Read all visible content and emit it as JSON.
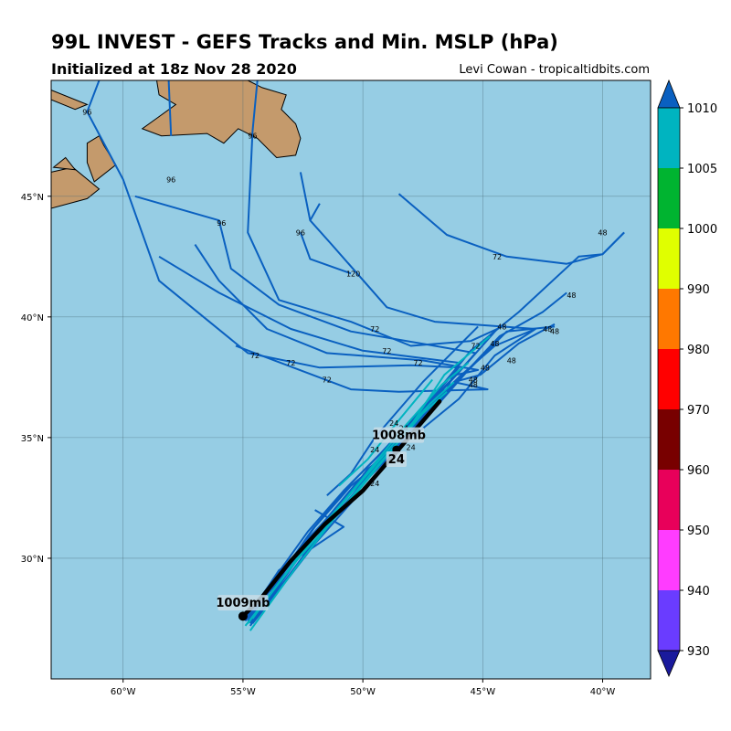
{
  "title": "99L INVEST - GEFS Tracks and Min. MSLP (hPa)",
  "subtitle": "Initialized at 18z Nov 28 2020",
  "credit": "Levi Cowan - tropicaltidbits.com",
  "map": {
    "lon_range": [
      -63,
      -38
    ],
    "lat_range": [
      25,
      49.8
    ],
    "ocean_color": "#96cde4",
    "land_color": "#c49a6c",
    "lon_ticks": [
      {
        "lon": -60,
        "label": "60°W"
      },
      {
        "lon": -55,
        "label": "55°W"
      },
      {
        "lon": -50,
        "label": "50°W"
      },
      {
        "lon": -45,
        "label": "45°W"
      },
      {
        "lon": -40,
        "label": "40°W"
      }
    ],
    "lat_ticks": [
      {
        "lat": 45,
        "label": "45°N"
      },
      {
        "lat": 40,
        "label": "40°N"
      },
      {
        "lat": 35,
        "label": "35°N"
      },
      {
        "lat": 30,
        "label": "30°N"
      }
    ]
  },
  "colorbar": {
    "levels": [
      "1010",
      "1005",
      "1000",
      "990",
      "980",
      "970",
      "960",
      "950",
      "940",
      "930"
    ],
    "colors": [
      "#0a60c0",
      "#00b4c0",
      "#00b430",
      "#e0ff00",
      "#ff7800",
      "#ff0000",
      "#780000",
      "#e8005a",
      "#ff3cff",
      "#6a3cff",
      "#1a1a9c"
    ]
  },
  "tracks": [
    [
      [
        -54.8,
        27.4
      ],
      [
        -53.5,
        29.2
      ],
      [
        -52,
        31.3
      ],
      [
        -50.5,
        33
      ],
      [
        -49,
        34.2
      ],
      [
        -47.5,
        35.8
      ],
      [
        -46,
        37.4
      ],
      [
        -44.3,
        39.2
      ],
      [
        -42.5,
        40.2
      ],
      [
        -41.5,
        41
      ]
    ],
    [
      [
        -54.7,
        27.3
      ],
      [
        -53.3,
        29
      ],
      [
        -51.8,
        31
      ],
      [
        -50.2,
        32.9
      ],
      [
        -48.8,
        34.3
      ],
      [
        -47.2,
        36
      ],
      [
        -45.6,
        37.8
      ],
      [
        -44,
        39.4
      ],
      [
        -42,
        39.6
      ]
    ],
    [
      [
        -54.9,
        27.5
      ],
      [
        -53.2,
        29.4
      ],
      [
        -51.6,
        31.5
      ],
      [
        -50,
        33.4
      ],
      [
        -48.5,
        35
      ],
      [
        -47,
        36.8
      ],
      [
        -45.5,
        38.6
      ],
      [
        -43.5,
        40.2
      ],
      [
        -41,
        42.5
      ],
      [
        -40,
        42.6
      ],
      [
        -39.1,
        43.5
      ]
    ],
    [
      [
        -54.6,
        27.3
      ],
      [
        -53.4,
        28.8
      ],
      [
        -52,
        30.6
      ],
      [
        -50.4,
        32.4
      ],
      [
        -48.9,
        34
      ],
      [
        -47.6,
        35.6
      ],
      [
        -46.2,
        37.3
      ],
      [
        -45.1,
        37.6
      ],
      [
        -43.5,
        38.9
      ],
      [
        -42,
        39.7
      ]
    ],
    [
      [
        -54.8,
        27.5
      ],
      [
        -53.6,
        29
      ],
      [
        -52.2,
        30.9
      ],
      [
        -50.6,
        32.6
      ],
      [
        -49.2,
        34
      ],
      [
        -47.8,
        35.3
      ],
      [
        -46.5,
        37
      ],
      [
        -46,
        38.1
      ],
      [
        -50,
        38.6
      ],
      [
        -53,
        39.5
      ],
      [
        -56,
        41
      ],
      [
        -58.5,
        42.5
      ]
    ],
    [
      [
        -54.7,
        27.4
      ],
      [
        -53.4,
        29.1
      ],
      [
        -51.9,
        31.1
      ],
      [
        -50.3,
        33
      ],
      [
        -48.9,
        34.5
      ],
      [
        -47.5,
        36.2
      ],
      [
        -46.1,
        37.6
      ],
      [
        -45.2,
        37.8
      ],
      [
        -47.5,
        38.2
      ],
      [
        -51.5,
        38.5
      ],
      [
        -54,
        39.5
      ],
      [
        -56,
        41.5
      ],
      [
        -57,
        43
      ]
    ],
    [
      [
        -54.8,
        27.6
      ],
      [
        -53.5,
        29.2
      ],
      [
        -52.1,
        31.2
      ],
      [
        -50.5,
        33.1
      ],
      [
        -49.1,
        34.5
      ],
      [
        -47.8,
        35.9
      ],
      [
        -46.2,
        37.5
      ],
      [
        -45.3,
        38.5
      ],
      [
        -47,
        38.8
      ],
      [
        -50.5,
        39.4
      ],
      [
        -53.5,
        40.5
      ],
      [
        -55.5,
        42
      ],
      [
        -56,
        44
      ],
      [
        -59.5,
        45
      ]
    ],
    [
      [
        -54.6,
        27.5
      ],
      [
        -53.3,
        29.2
      ],
      [
        -51.8,
        31.3
      ],
      [
        -50.2,
        33.2
      ],
      [
        -48.8,
        34.7
      ],
      [
        -47.4,
        36.2
      ],
      [
        -46,
        37.7
      ],
      [
        -44.4,
        39.5
      ],
      [
        -45.5,
        39
      ],
      [
        -48,
        38.8
      ],
      [
        -50.5,
        39.8
      ],
      [
        -53.5,
        40.7
      ],
      [
        -54.8,
        43.5
      ],
      [
        -54.6,
        47.7
      ]
    ],
    [
      [
        -54.9,
        27.5
      ],
      [
        -53.6,
        29.3
      ],
      [
        -52.3,
        31.1
      ],
      [
        -50.8,
        32.8
      ],
      [
        -49.4,
        34.2
      ],
      [
        -48,
        35.7
      ],
      [
        -46.8,
        37
      ],
      [
        -46,
        37.9
      ],
      [
        -48,
        38
      ],
      [
        -51.8,
        37.9
      ],
      [
        -54.8,
        38.5
      ],
      [
        -58.5,
        41.5
      ],
      [
        -60,
        45.7
      ],
      [
        -61.5,
        48.5
      ],
      [
        -61,
        49.8
      ]
    ],
    [
      [
        -54.7,
        27.2
      ],
      [
        -53.4,
        29
      ],
      [
        -52,
        31
      ],
      [
        -50.5,
        32.8
      ],
      [
        -49,
        34.3
      ],
      [
        -47.6,
        35.8
      ],
      [
        -46.2,
        37.3
      ],
      [
        -44.8,
        37
      ],
      [
        -48.5,
        36.9
      ],
      [
        -50.5,
        37
      ],
      [
        -55.3,
        38.8
      ]
    ],
    [
      [
        -54.8,
        27.4
      ],
      [
        -53.5,
        29.2
      ],
      [
        -52,
        31
      ],
      [
        -50.4,
        32.9
      ],
      [
        -49,
        34.4
      ],
      [
        -47.5,
        36
      ],
      [
        -46,
        37.5
      ],
      [
        -44.5,
        38.8
      ],
      [
        -42.8,
        39.5
      ],
      [
        -47,
        39.8
      ],
      [
        -49,
        40.4
      ],
      [
        -51.3,
        43
      ],
      [
        -52.2,
        44
      ],
      [
        -52.6,
        46
      ]
    ],
    [
      [
        -52.5,
        30
      ],
      [
        -49.8,
        33.7
      ],
      [
        -47.6,
        35.3
      ],
      [
        -46,
        36.6
      ],
      [
        -44.5,
        38.4
      ],
      [
        -42.8,
        39.5
      ]
    ],
    [
      [
        -52,
        32
      ],
      [
        -50.8,
        31.3
      ],
      [
        -53.5,
        29.5
      ],
      [
        -54.9,
        27.4
      ]
    ],
    [
      [
        -45.2,
        39.6
      ],
      [
        -47.5,
        37.3
      ],
      [
        -49.5,
        35
      ],
      [
        -50.5,
        33.5
      ],
      [
        -51.5,
        32.6
      ]
    ],
    [
      [
        -52.6,
        43.5
      ],
      [
        -52.2,
        42.4
      ],
      [
        -50.5,
        41.8
      ]
    ],
    [
      [
        -48.5,
        45.1
      ],
      [
        -46.5,
        43.4
      ],
      [
        -44,
        42.5
      ],
      [
        -41.5,
        42.2
      ],
      [
        -40,
        42.6
      ],
      [
        -39.1,
        43.5
      ]
    ],
    [
      [
        -54.6,
        47.7
      ],
      [
        -54.4,
        49.8
      ]
    ],
    [
      [
        -58,
        47.5
      ],
      [
        -58.1,
        49.8
      ]
    ],
    [
      [
        -52.2,
        44
      ],
      [
        -51.8,
        44.7
      ]
    ]
  ],
  "mean_track": [
    [
      -55,
      27.6
    ],
    [
      -54.2,
      28.4
    ],
    [
      -53,
      29.9
    ],
    [
      -51.6,
      31.4
    ],
    [
      -50,
      32.8
    ],
    [
      -48.6,
      34.4
    ],
    [
      -48,
      35.1
    ],
    [
      -47.4,
      35.8
    ],
    [
      -46.8,
      36.5
    ]
  ],
  "cyan_tracks": [
    [
      [
        -54.8,
        27.3
      ],
      [
        -52.5,
        30.3
      ],
      [
        -50.4,
        32.8
      ],
      [
        -48.5,
        35
      ],
      [
        -47.2,
        36.4
      ],
      [
        -46.2,
        37.3
      ]
    ],
    [
      [
        -54.6,
        27.5
      ],
      [
        -52.3,
        30.6
      ],
      [
        -50.1,
        33.2
      ],
      [
        -48.4,
        35.3
      ],
      [
        -46.7,
        37.2
      ],
      [
        -45.6,
        38.1
      ]
    ],
    [
      [
        -54.9,
        27.2
      ],
      [
        -52.6,
        30.1
      ],
      [
        -50.6,
        32.3
      ],
      [
        -48.7,
        34.6
      ],
      [
        -47.5,
        36
      ],
      [
        -46.5,
        36.9
      ]
    ],
    [
      [
        -54.7,
        27
      ],
      [
        -52.8,
        29.6
      ],
      [
        -51,
        31.9
      ],
      [
        -49.5,
        33.7
      ],
      [
        -48.2,
        35.2
      ],
      [
        -46.6,
        37.6
      ],
      [
        -44.7,
        39.2
      ]
    ],
    [
      [
        -51,
        33
      ],
      [
        -49.8,
        34.1
      ],
      [
        -48.6,
        35.6
      ],
      [
        -47.1,
        37.4
      ]
    ]
  ],
  "hour_labels": [
    {
      "lon": -61.5,
      "lat": 48.5,
      "text": "96"
    },
    {
      "lon": -58,
      "lat": 45.7,
      "text": "96"
    },
    {
      "lon": -55.9,
      "lat": 43.9,
      "text": "96"
    },
    {
      "lon": -52.6,
      "lat": 43.5,
      "text": "96"
    },
    {
      "lon": -54.6,
      "lat": 47.5,
      "text": "96"
    },
    {
      "lon": -50.4,
      "lat": 41.8,
      "text": "120"
    },
    {
      "lon": -44.4,
      "lat": 42.5,
      "text": "72"
    },
    {
      "lon": -40,
      "lat": 43.5,
      "text": "48"
    },
    {
      "lon": -41.3,
      "lat": 40.9,
      "text": "48"
    },
    {
      "lon": -49.5,
      "lat": 39.5,
      "text": "72"
    },
    {
      "lon": -49,
      "lat": 38.6,
      "text": "72"
    },
    {
      "lon": -47.7,
      "lat": 38.1,
      "text": "72"
    },
    {
      "lon": -45.3,
      "lat": 38.8,
      "text": "72"
    },
    {
      "lon": -44.5,
      "lat": 38.9,
      "text": "48"
    },
    {
      "lon": -44.2,
      "lat": 39.6,
      "text": "48"
    },
    {
      "lon": -43.8,
      "lat": 38.2,
      "text": "48"
    },
    {
      "lon": -44.9,
      "lat": 37.9,
      "text": "48"
    },
    {
      "lon": -45.4,
      "lat": 37.4,
      "text": "48"
    },
    {
      "lon": -45.4,
      "lat": 37.2,
      "text": "48"
    },
    {
      "lon": -42.3,
      "lat": 39.5,
      "text": "48"
    },
    {
      "lon": -42,
      "lat": 39.4,
      "text": "48"
    },
    {
      "lon": -54.5,
      "lat": 38.4,
      "text": "72"
    },
    {
      "lon": -53,
      "lat": 38.1,
      "text": "72"
    },
    {
      "lon": -51.5,
      "lat": 37.4,
      "text": "72"
    },
    {
      "lon": -48.7,
      "lat": 35.6,
      "text": "24"
    },
    {
      "lon": -48.3,
      "lat": 35.4,
      "text": "24"
    },
    {
      "lon": -49.5,
      "lat": 34.5,
      "text": "24"
    },
    {
      "lon": -48,
      "lat": 34.6,
      "text": "24"
    },
    {
      "lon": -49.5,
      "lat": 33.1,
      "text": "24"
    }
  ],
  "annotations": [
    {
      "lon": -48.5,
      "lat": 35.05,
      "text": "1008mb"
    },
    {
      "lon": -48.6,
      "lat": 34.05,
      "text": "24"
    },
    {
      "lon": -55,
      "lat": 28.1,
      "text": "1009mb"
    }
  ],
  "land": [
    [
      [
        -63,
        49
      ],
      [
        -62,
        48.6
      ],
      [
        -61.5,
        48.8
      ],
      [
        -63,
        49.4
      ]
    ],
    [
      [
        -58.6,
        49.8
      ],
      [
        -58.5,
        49.2
      ],
      [
        -57.8,
        48.8
      ],
      [
        -58.5,
        48.3
      ],
      [
        -59.2,
        47.8
      ],
      [
        -58.4,
        47.5
      ],
      [
        -56.5,
        47.6
      ],
      [
        -55.8,
        47.2
      ],
      [
        -55.2,
        47.8
      ],
      [
        -54.4,
        47.4
      ],
      [
        -53.6,
        46.6
      ],
      [
        -52.8,
        46.7
      ],
      [
        -52.6,
        47.4
      ],
      [
        -52.8,
        48
      ],
      [
        -53.4,
        48.6
      ],
      [
        -53.2,
        49.2
      ],
      [
        -54.2,
        49.5
      ],
      [
        -54.8,
        49.8
      ]
    ],
    [
      [
        -61.5,
        47.2
      ],
      [
        -61,
        47.5
      ],
      [
        -60.8,
        47.1
      ],
      [
        -60.3,
        46.3
      ],
      [
        -61.2,
        45.6
      ],
      [
        -61.5,
        46.4
      ]
    ],
    [
      [
        -63,
        46
      ],
      [
        -62.1,
        46.2
      ],
      [
        -61,
        45.3
      ],
      [
        -61.5,
        44.9
      ],
      [
        -63,
        44.5
      ]
    ],
    [
      [
        -62.4,
        46.6
      ],
      [
        -62.9,
        46.2
      ],
      [
        -62,
        46.1
      ]
    ]
  ]
}
